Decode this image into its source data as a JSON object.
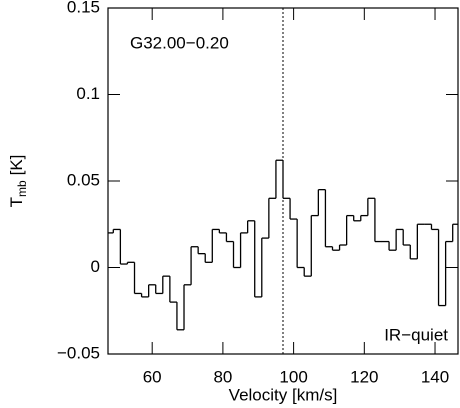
{
  "chart_data": {
    "type": "step",
    "annotations": [
      "G32.00−0.20",
      "IR−quiet"
    ],
    "xlabel": "Velocity [km/s]",
    "ylabel": {
      "symbol": "T",
      "subscript": "mb",
      "unit": "[K]"
    },
    "x": [
      48,
      50,
      52,
      54,
      56,
      58,
      60,
      62,
      64,
      66,
      68,
      70,
      72,
      74,
      76,
      78,
      80,
      82,
      84,
      86,
      88,
      90,
      92,
      94,
      96,
      98,
      100,
      102,
      104,
      106,
      108,
      110,
      112,
      114,
      116,
      118,
      120,
      122,
      124,
      126,
      128,
      130,
      132,
      134,
      136,
      138,
      140,
      142,
      144,
      146
    ],
    "values": [
      0.02,
      0.022,
      0.002,
      0.003,
      -0.015,
      -0.017,
      -0.01,
      -0.015,
      -0.005,
      -0.02,
      -0.036,
      -0.01,
      0.012,
      0.008,
      0.003,
      0.022,
      0.02,
      0.015,
      0.0,
      0.02,
      0.027,
      -0.017,
      0.017,
      0.04,
      0.062,
      0.04,
      0.028,
      0.0,
      -0.005,
      0.03,
      0.045,
      0.012,
      0.01,
      0.013,
      0.03,
      0.027,
      0.03,
      0.04,
      0.015,
      0.015,
      0.01,
      0.022,
      0.013,
      0.005,
      0.025,
      0.025,
      0.022,
      -0.022,
      0.015,
      0.025
    ],
    "color": "#000000",
    "vline": 97,
    "xlim": [
      47.5,
      146.5
    ],
    "ylim": [
      -0.05,
      0.15
    ],
    "xticks": [
      60,
      80,
      100,
      120,
      140
    ],
    "yticks": [
      {
        "value": -0.05,
        "label": "−0.05"
      },
      0,
      0.05,
      0.1,
      0.15
    ]
  }
}
